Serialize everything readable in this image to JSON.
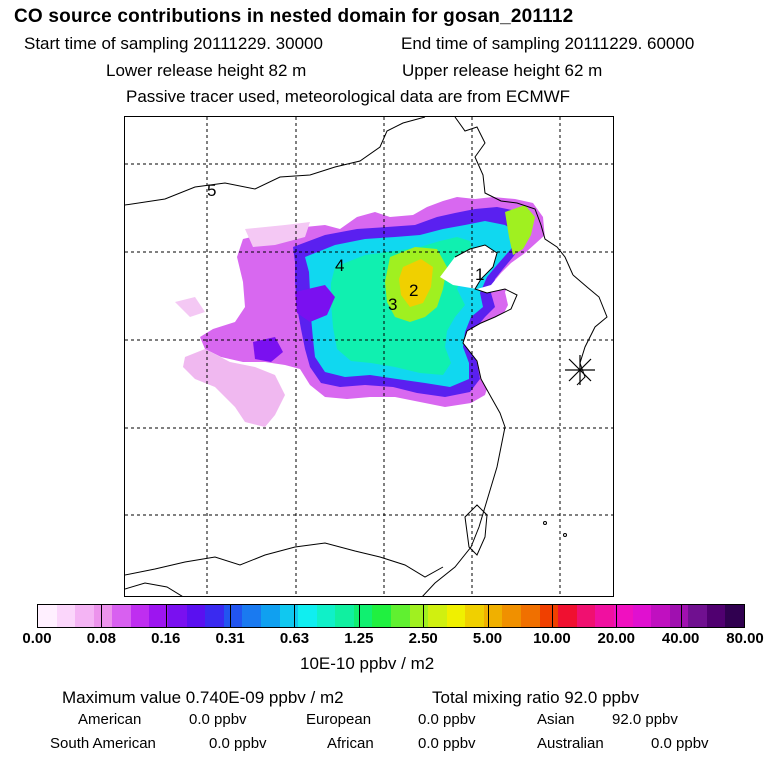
{
  "header": {
    "title": "CO  source contributions in nested domain for gosan_201112",
    "start_label": "Start time of sampling 20111229. 30000",
    "end_label": "End time of sampling 20111229. 60000",
    "lower_label": "Lower release height   82 m",
    "upper_label": "Upper release height   62 m",
    "info": "Passive tracer used, meteorological data are from ECMWF"
  },
  "map": {
    "region_labels": [
      "1",
      "2",
      "3",
      "4",
      "5"
    ],
    "receptor_icon": "star-icon"
  },
  "colorbar": {
    "colors": [
      "#fff0ff",
      "#fbd6fb",
      "#f4b4f4",
      "#ec93ec",
      "#d860f0",
      "#bf2ef0",
      "#9d15f0",
      "#7a10f0",
      "#5a10f0",
      "#3a2af0",
      "#2255f0",
      "#1a7af0",
      "#10a0f0",
      "#10c8f0",
      "#10eef0",
      "#10f0c8",
      "#10f0a0",
      "#10f070",
      "#20f040",
      "#60f030",
      "#a0f020",
      "#d0f010",
      "#f0f000",
      "#f0d000",
      "#f0b000",
      "#f09000",
      "#f07000",
      "#f04000",
      "#f01030",
      "#f01070",
      "#f010a0",
      "#f010c0",
      "#e010d0",
      "#c010c0",
      "#a010b0",
      "#701090",
      "#500070",
      "#300050"
    ],
    "tick_labels": [
      "0.00",
      "0.08",
      "0.16",
      "0.31",
      "0.63",
      "1.25",
      "2.50",
      "5.00",
      "10.00",
      "20.00",
      "40.00",
      "80.00"
    ],
    "unit": "10E-10 ppbv / m2"
  },
  "summary": {
    "max_value": "Maximum value  0.740E-09 ppbv / m2",
    "total": "Total mixing ratio       92.0 ppbv",
    "american_label": "American",
    "american_value": "0.0 ppbv",
    "european_label": "European",
    "european_value": "0.0 ppbv",
    "asian_label": "Asian",
    "asian_value": "92.0 ppbv",
    "south_american_label": "South American",
    "south_american_value": "0.0 ppbv",
    "african_label": "African",
    "african_value": "0.0 ppbv",
    "australian_label": "Australian",
    "australian_value": "0.0 ppbv"
  }
}
